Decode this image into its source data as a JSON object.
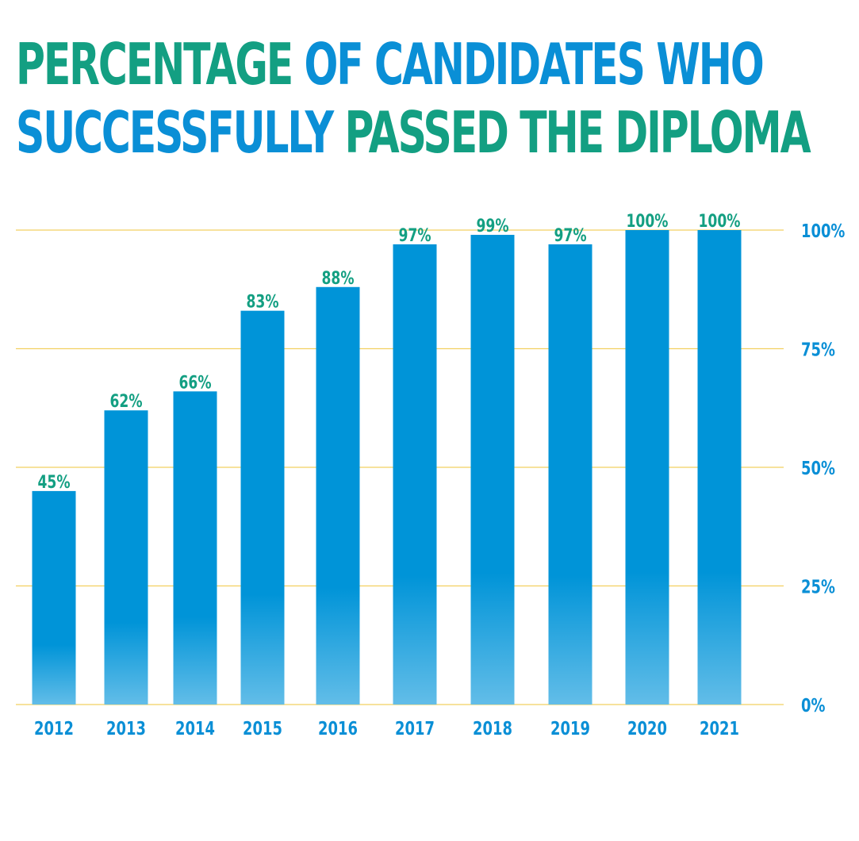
{
  "title": {
    "line1_green": "PERCENTAGE",
    "line1_blue": "OF CANDIDATES WHO",
    "line2_blue": "SUCCESSFULLY",
    "line2_green": "PASSED THE DIPLOMA"
  },
  "colors": {
    "green": "#139f82",
    "blue": "#0a8fd6",
    "bar_top": "#0094d8",
    "bar_bottom": "#62bde8",
    "grid": "#f2d060"
  },
  "chart_data": {
    "type": "bar",
    "categories": [
      "2012",
      "2013",
      "2014",
      "2015",
      "2016",
      "2017",
      "2018",
      "2019",
      "2020",
      "2021"
    ],
    "values": [
      45,
      62,
      66,
      83,
      88,
      97,
      99,
      97,
      100,
      100
    ],
    "data_labels": [
      "45%",
      "62%",
      "66%",
      "83%",
      "88%",
      "97%",
      "99%",
      "97%",
      "100%",
      "100%"
    ],
    "ylim": [
      0,
      100
    ],
    "y_ticks": [
      0,
      25,
      50,
      75,
      100
    ],
    "y_tick_labels": [
      "0%",
      "25%",
      "50%",
      "75%",
      "100%"
    ],
    "y_axis_side": "right",
    "grid": true
  }
}
